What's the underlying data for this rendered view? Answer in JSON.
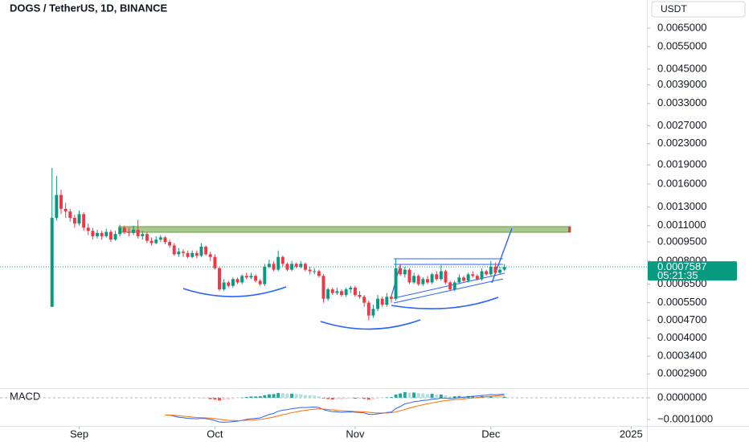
{
  "chart_data": [
    {
      "type": "candlestick",
      "title": "DOGS / TetherUS, 1D, BINANCE",
      "currency": "USDT",
      "log_scale": true,
      "categories": [
        null,
        null,
        null,
        null,
        null,
        null,
        null,
        null,
        null,
        null,
        null,
        null,
        null,
        null,
        null,
        null,
        null,
        null,
        null,
        null,
        null,
        null,
        null,
        null,
        null,
        null,
        null,
        null,
        null,
        null,
        null,
        null,
        null,
        null,
        null,
        null,
        null,
        null,
        null,
        null,
        null,
        null,
        null,
        null,
        null,
        null,
        null,
        null,
        null,
        null,
        null,
        null,
        null,
        null,
        null,
        null,
        null,
        null,
        null,
        null,
        null,
        null,
        null,
        null,
        null,
        null,
        null,
        null,
        null,
        null,
        null,
        null,
        null,
        null,
        null,
        null,
        null,
        null,
        null,
        null,
        null,
        null,
        null,
        null,
        null,
        null,
        null,
        null,
        null,
        null,
        null,
        null,
        null,
        null,
        null,
        null,
        null,
        null,
        null,
        null,
        null
      ],
      "open": [
        0.00053,
        0.00118,
        0.00145,
        0.00128,
        0.00125,
        0.00118,
        0.00112,
        0.00122,
        0.00108,
        0.00105,
        0.001,
        0.00103,
        0.001,
        0.00104,
        0.00097,
        0.00102,
        0.00108,
        0.00104,
        0.00103,
        0.00106,
        0.001,
        0.00102,
        0.00096,
        0.00094,
        0.00097,
        0.00099,
        0.00095,
        0.00092,
        0.00085,
        0.00087,
        0.00086,
        0.00083,
        0.00086,
        0.00084,
        0.00091,
        0.00085,
        0.00083,
        0.00075,
        0.00062,
        0.00066,
        0.00064,
        0.00068,
        0.00066,
        0.0007,
        0.00069,
        0.0007,
        0.00067,
        0.00065,
        0.00076,
        0.00078,
        0.00074,
        0.00083,
        0.00078,
        0.00074,
        0.00078,
        0.00076,
        0.00078,
        0.00074,
        0.00073,
        0.00073,
        0.0007,
        0.00057,
        0.00062,
        0.0006,
        0.00061,
        0.00059,
        0.00062,
        0.00063,
        0.00059,
        0.00058,
        0.00055,
        0.00049,
        0.00052,
        0.00057,
        0.00054,
        0.00058,
        0.00057,
        0.00075,
        0.00071,
        0.00074,
        0.00066,
        0.0007,
        0.00065,
        0.00068,
        0.00066,
        0.00071,
        0.00068,
        0.00073,
        0.00066,
        0.00062,
        0.00066,
        0.00069,
        0.00067,
        0.00071,
        0.0007,
        0.00068,
        0.00073,
        0.00071,
        0.00076,
        0.00072,
        0.00074
      ],
      "high": [
        0.00185,
        0.00172,
        0.00152,
        0.00135,
        0.00128,
        0.00121,
        0.00126,
        0.00124,
        0.00112,
        0.00108,
        0.00106,
        0.00105,
        0.00107,
        0.00106,
        0.00105,
        0.00111,
        0.0011,
        0.00108,
        0.0011,
        0.00116,
        0.00105,
        0.00104,
        0.00099,
        0.001,
        0.00101,
        0.001,
        0.00097,
        0.00094,
        0.0009,
        0.00089,
        0.00088,
        0.00088,
        0.00088,
        0.00094,
        0.00092,
        0.00087,
        0.00085,
        0.00076,
        0.00068,
        0.00067,
        0.00069,
        0.00069,
        0.00071,
        0.00072,
        0.00072,
        0.00071,
        0.00068,
        0.00078,
        0.00081,
        0.0008,
        0.00088,
        0.00084,
        0.00079,
        0.0008,
        0.00079,
        0.0008,
        0.00079,
        0.00076,
        0.00075,
        0.00074,
        0.00071,
        0.00063,
        0.00063,
        0.00063,
        0.00062,
        0.00063,
        0.00064,
        0.00064,
        0.00061,
        0.00059,
        0.00056,
        0.00054,
        0.00059,
        0.00058,
        0.0006,
        0.00059,
        0.00082,
        0.00078,
        0.00076,
        0.00075,
        0.00072,
        0.00071,
        0.00069,
        0.0007,
        0.00072,
        0.00073,
        0.00077,
        0.00074,
        0.00067,
        0.00067,
        0.00071,
        0.0007,
        0.00072,
        0.00073,
        0.00071,
        0.00075,
        0.00074,
        0.0008,
        0.00079,
        0.00076,
        0.00078
      ],
      "low": [
        0.00053,
        0.00115,
        0.00122,
        0.00118,
        0.00114,
        0.00108,
        0.0011,
        0.00105,
        0.00101,
        0.00097,
        0.00098,
        0.00097,
        0.00099,
        0.00095,
        0.00096,
        0.001,
        0.00102,
        0.001,
        0.00101,
        0.00098,
        0.00097,
        0.00094,
        0.00092,
        0.00093,
        0.00095,
        0.00093,
        0.0009,
        0.00084,
        0.00083,
        0.00083,
        0.00082,
        0.00082,
        0.00082,
        0.00083,
        0.00084,
        0.0008,
        0.00074,
        0.00061,
        0.00061,
        0.00063,
        0.00063,
        0.00065,
        0.00065,
        0.00068,
        0.00068,
        0.00066,
        0.00064,
        0.00064,
        0.00075,
        0.00073,
        0.00073,
        0.00076,
        0.00073,
        0.00073,
        0.00075,
        0.00075,
        0.00073,
        0.00071,
        0.00071,
        0.00069,
        0.00055,
        0.00056,
        0.00059,
        0.00059,
        0.00058,
        0.00058,
        0.0006,
        0.00058,
        0.00057,
        0.00053,
        0.00047,
        0.00048,
        0.00051,
        0.00053,
        0.00053,
        0.00055,
        0.00056,
        0.0007,
        0.00069,
        0.00065,
        0.00065,
        0.00064,
        0.00064,
        0.00065,
        0.00065,
        0.00067,
        0.00067,
        0.00065,
        0.00061,
        0.00061,
        0.00065,
        0.00066,
        0.00066,
        0.00069,
        0.00067,
        0.00067,
        0.0007,
        0.0007,
        0.00071,
        0.00071,
        0.00073
      ],
      "close": [
        0.00118,
        0.00145,
        0.00128,
        0.00125,
        0.00118,
        0.00112,
        0.00122,
        0.00108,
        0.00105,
        0.001,
        0.00103,
        0.001,
        0.00104,
        0.00097,
        0.00102,
        0.00108,
        0.00104,
        0.00103,
        0.00106,
        0.001,
        0.00102,
        0.00096,
        0.00094,
        0.00097,
        0.00099,
        0.00095,
        0.00092,
        0.00085,
        0.00087,
        0.00086,
        0.00083,
        0.00086,
        0.00084,
        0.00091,
        0.00085,
        0.00083,
        0.00075,
        0.00062,
        0.00066,
        0.00064,
        0.00068,
        0.00066,
        0.0007,
        0.00069,
        0.0007,
        0.00067,
        0.00065,
        0.00076,
        0.00078,
        0.00074,
        0.00083,
        0.00078,
        0.00074,
        0.00078,
        0.00076,
        0.00078,
        0.00074,
        0.00073,
        0.00073,
        0.0007,
        0.00057,
        0.00062,
        0.0006,
        0.00061,
        0.00059,
        0.00062,
        0.00063,
        0.00059,
        0.00058,
        0.00055,
        0.00049,
        0.00052,
        0.00057,
        0.00054,
        0.00058,
        0.00057,
        0.00075,
        0.00071,
        0.00074,
        0.00066,
        0.0007,
        0.00065,
        0.00068,
        0.00066,
        0.00071,
        0.00068,
        0.00073,
        0.00066,
        0.00062,
        0.00066,
        0.00069,
        0.00067,
        0.00071,
        0.0007,
        0.00068,
        0.00073,
        0.00071,
        0.00076,
        0.00072,
        0.00074,
        0.0007587
      ],
      "up_color": "#089981",
      "down_color": "#f23645",
      "ylim": [
        0.000255,
        0.00837
      ],
      "yticks": [
        {
          "value": 0.0065,
          "label": "0.0065000"
        },
        {
          "value": 0.0055,
          "label": "0.0055000"
        },
        {
          "value": 0.0045,
          "label": "0.0045000"
        },
        {
          "value": 0.0039,
          "label": "0.0039000"
        },
        {
          "value": 0.0033,
          "label": "0.0033000"
        },
        {
          "value": 0.0027,
          "label": "0.0027000"
        },
        {
          "value": 0.0023,
          "label": "0.0023000"
        },
        {
          "value": 0.0019,
          "label": "0.0019000"
        },
        {
          "value": 0.0016,
          "label": "0.0016000"
        },
        {
          "value": 0.0013,
          "label": "0.0013000"
        },
        {
          "value": 0.0011,
          "label": "0.0011000"
        },
        {
          "value": 0.00095,
          "label": "0.0009500"
        },
        {
          "value": 0.0008,
          "label": "0.0008000"
        },
        {
          "value": 0.00065,
          "label": "0.0006500"
        },
        {
          "value": 0.00055,
          "label": "0.0005500"
        },
        {
          "value": 0.00047,
          "label": "0.0004700"
        },
        {
          "value": 0.0004,
          "label": "0.0004000"
        },
        {
          "value": 0.00034,
          "label": "0.0003400"
        },
        {
          "value": 0.00029,
          "label": "0.0002900"
        }
      ],
      "xlim": [
        -11.5,
        131.5
      ],
      "xticks": [
        {
          "value": 6,
          "label": "Sep"
        },
        {
          "value": 36,
          "label": "Oct"
        },
        {
          "value": 67,
          "label": "Nov"
        },
        {
          "value": 97,
          "label": "Dec"
        },
        {
          "value": 128,
          "label": "2025"
        }
      ],
      "last_price": 0.0007587,
      "last_price_color": "#089981",
      "countdown": "05:21:35"
    },
    {
      "type": "macd",
      "title": "MACD",
      "ylim": [
        -0.00013,
        3.7e-05
      ],
      "yticks": [
        {
          "value": 0,
          "label": "0.0000000"
        },
        {
          "value": -0.0001,
          "label": "−0.0001000"
        }
      ],
      "series": [
        {
          "color": "#2962ff",
          "values": [
            null,
            null,
            null,
            null,
            null,
            null,
            null,
            null,
            null,
            null,
            null,
            null,
            null,
            null,
            null,
            null,
            null,
            null,
            null,
            null,
            null,
            null,
            null,
            null,
            null,
            -8e-05,
            -8e-05,
            -8.5e-05,
            -9e-05,
            -9.2e-05,
            -9.5e-05,
            -9.6e-05,
            -9.7e-05,
            -9.5e-05,
            -9.6e-05,
            -0.0001,
            -0.000105,
            -0.000112,
            -0.000113,
            -0.000112,
            -0.00011,
            -0.000108,
            -0.000104,
            -0.0001,
            -9.7e-05,
            -9.5e-05,
            -9.3e-05,
            -8.5e-05,
            -7.7e-05,
            -7.2e-05,
            -6.2e-05,
            -5.7e-05,
            -5.5e-05,
            -5e-05,
            -4.8e-05,
            -4.5e-05,
            -4.5e-05,
            -4.4e-05,
            -4.3e-05,
            -4.5e-05,
            -5.5e-05,
            -6e-05,
            -6.4e-05,
            -6.5e-05,
            -6.7e-05,
            -6.6e-05,
            -6.5e-05,
            -6.7e-05,
            -6.8e-05,
            -7e-05,
            -7.6e-05,
            -7.7e-05,
            -7.4e-05,
            -7.2e-05,
            -6.8e-05,
            -6.6e-05,
            -5e-05,
            -4e-05,
            -2.8e-05,
            -2.4e-05,
            -1.8e-05,
            -1.6e-05,
            -1.2e-05,
            -1.1e-05,
            -6e-06,
            -5e-06,
            -1e-06,
            -2e-06,
            -4e-06,
            -2e-06,
            1e-06,
            2e-06,
            5e-06,
            7e-06,
            8e-06,
            1.1e-05,
            1.2e-05,
            1.5e-05,
            1.4e-05,
            1.5e-05,
            1.6e-05
          ]
        },
        {
          "color": "#ff6d00",
          "values": [
            null,
            null,
            null,
            null,
            null,
            null,
            null,
            null,
            null,
            null,
            null,
            null,
            null,
            null,
            null,
            null,
            null,
            null,
            null,
            null,
            null,
            null,
            null,
            null,
            null,
            -8e-05,
            -8e-05,
            -8.1e-05,
            -8.3e-05,
            -8.5e-05,
            -8.7e-05,
            -8.9e-05,
            -9.1e-05,
            -9.2e-05,
            -9.3e-05,
            -9.4e-05,
            -9.6e-05,
            -9.9e-05,
            -0.000102,
            -0.000104,
            -0.000105,
            -0.000106,
            -0.000105,
            -0.000104,
            -0.000103,
            -0.000101,
            -0.0001,
            -9.7e-05,
            -9.3e-05,
            -8.9e-05,
            -8.4e-05,
            -7.8e-05,
            -7.4e-05,
            -6.9e-05,
            -6.5e-05,
            -6.1e-05,
            -5.8e-05,
            -5.5e-05,
            -5.3e-05,
            -5.1e-05,
            -5.2e-05,
            -5.4e-05,
            -5.6e-05,
            -5.8e-05,
            -6e-05,
            -6.1e-05,
            -6.2e-05,
            -6.3e-05,
            -6.4e-05,
            -6.5e-05,
            -6.7e-05,
            -6.9e-05,
            -7e-05,
            -7e-05,
            -7e-05,
            -6.9e-05,
            -6.5e-05,
            -6e-05,
            -5.4e-05,
            -4.8e-05,
            -4.2e-05,
            -3.7e-05,
            -3.2e-05,
            -2.8e-05,
            -2.4e-05,
            -2e-05,
            -1.6e-05,
            -1.3e-05,
            -1.1e-05,
            -9e-06,
            -7e-06,
            -5e-06,
            -3e-06,
            -1e-06,
            1e-06,
            3e-06,
            5e-06,
            7e-06,
            8e-06,
            1e-05,
            1.1e-05
          ]
        }
      ],
      "histogram": [
        null,
        null,
        null,
        null,
        null,
        null,
        null,
        null,
        null,
        null,
        null,
        null,
        null,
        null,
        null,
        null,
        null,
        null,
        null,
        null,
        null,
        null,
        null,
        null,
        null,
        null,
        null,
        null,
        null,
        null,
        null,
        null,
        null,
        -3e-06,
        -3e-06,
        -6e-06,
        -9e-06,
        -1.3e-05,
        -1.1e-05,
        -8e-06,
        -5e-06,
        -2e-06,
        1e-06,
        4e-06,
        6e-06,
        6e-06,
        7e-06,
        1.2e-05,
        1.6e-05,
        1.7e-05,
        2.2e-05,
        2.1e-05,
        1.9e-05,
        1.9e-05,
        1.7e-05,
        1.6e-05,
        1.3e-05,
        1.1e-05,
        1e-05,
        6e-06,
        -3e-06,
        -6e-06,
        -8e-06,
        -7e-06,
        -7e-06,
        -5e-06,
        -3e-06,
        -4e-06,
        -4e-06,
        -5e-06,
        -9e-06,
        -8e-06,
        -4e-06,
        -2e-06,
        2e-06,
        3e-06,
        1.5e-05,
        2e-05,
        2.6e-05,
        2.4e-05,
        2.4e-05,
        2.1e-05,
        2e-05,
        1.7e-05,
        1.8e-05,
        1.5e-05,
        1.5e-05,
        1.1e-05,
        7e-06,
        7e-06,
        8e-06,
        7e-06,
        8e-06,
        8e-06,
        7e-06,
        8e-06,
        7e-06,
        8e-06,
        6e-06,
        5e-06,
        5e-06
      ],
      "hist_colors": {
        "up_rising": "#26a69a",
        "up_falling": "#b2dfdb",
        "down_falling": "#ff5252",
        "down_rising": "#ffcdd2"
      }
    }
  ]
}
